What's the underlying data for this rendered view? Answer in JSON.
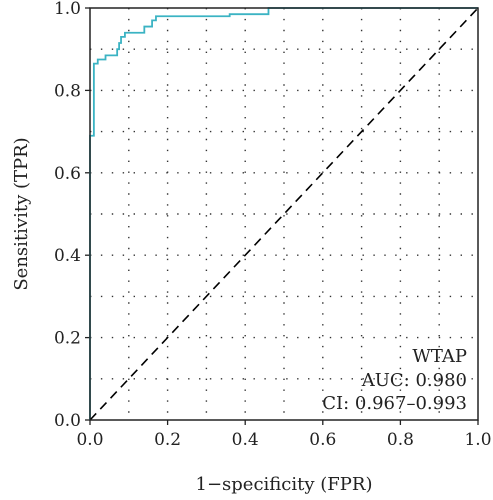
{
  "chart_data": {
    "type": "line",
    "title": "",
    "xlabel": "1−specificity (FPR)",
    "ylabel": "Sensitivity (TPR)",
    "xlim": [
      0,
      1
    ],
    "ylim": [
      0,
      1
    ],
    "xticks": [
      "0.0",
      "0.2",
      "0.4",
      "0.6",
      "0.8",
      "1.0"
    ],
    "yticks": [
      "0.0",
      "0.2",
      "0.4",
      "0.6",
      "0.8",
      "1.0"
    ],
    "grid": "dotted",
    "series": [
      {
        "color": "#3bb3c3",
        "points": [
          [
            0.0,
            0.0
          ],
          [
            0.0,
            0.69
          ],
          [
            0.01,
            0.69
          ],
          [
            0.01,
            0.865
          ],
          [
            0.02,
            0.865
          ],
          [
            0.02,
            0.875
          ],
          [
            0.04,
            0.875
          ],
          [
            0.04,
            0.885
          ],
          [
            0.07,
            0.885
          ],
          [
            0.07,
            0.9
          ],
          [
            0.075,
            0.9
          ],
          [
            0.075,
            0.915
          ],
          [
            0.08,
            0.915
          ],
          [
            0.08,
            0.93
          ],
          [
            0.09,
            0.93
          ],
          [
            0.09,
            0.94
          ],
          [
            0.14,
            0.94
          ],
          [
            0.14,
            0.955
          ],
          [
            0.16,
            0.955
          ],
          [
            0.16,
            0.97
          ],
          [
            0.17,
            0.97
          ],
          [
            0.17,
            0.98
          ],
          [
            0.36,
            0.98
          ],
          [
            0.36,
            0.985
          ],
          [
            0.46,
            0.985
          ],
          [
            0.46,
            1.0
          ],
          [
            1.0,
            1.0
          ]
        ]
      },
      {
        "color": "#000000",
        "style": "dashed",
        "points": [
          [
            0,
            0
          ],
          [
            1,
            1
          ]
        ]
      }
    ],
    "annotations": [
      "WTAP",
      "AUC: 0.980",
      "CI: 0.967–0.993"
    ]
  }
}
